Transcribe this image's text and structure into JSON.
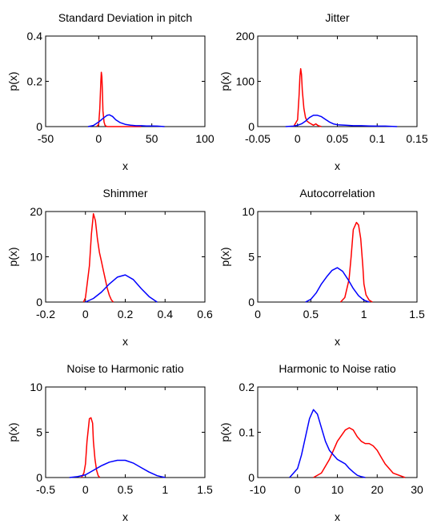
{
  "chart_data": [
    {
      "type": "line",
      "title": "Standard Deviation in pitch",
      "xlabel": "x",
      "ylabel": "p(x)",
      "xlim": [
        -50,
        100
      ],
      "ylim": [
        0,
        0.4
      ],
      "xticks": [
        -50,
        0,
        50,
        100
      ],
      "yticks": [
        0,
        0.2,
        0.4
      ],
      "xtick_labels": [
        "-50",
        "0",
        "50",
        "100"
      ],
      "ytick_labels": [
        "0",
        "0.2",
        "0.4"
      ],
      "grid": false,
      "series": [
        {
          "color": "#ff0000",
          "x": [
            -2,
            0,
            1,
            2,
            2.5,
            3,
            3.5,
            4,
            5,
            6,
            8,
            12,
            20,
            30,
            40
          ],
          "y": [
            0,
            0.01,
            0.08,
            0.2,
            0.24,
            0.22,
            0.15,
            0.07,
            0.02,
            0.005,
            0,
            0,
            0,
            0,
            0
          ]
        },
        {
          "color": "#0000ff",
          "x": [
            -10,
            -5,
            0,
            5,
            8,
            10,
            13,
            16,
            20,
            25,
            30,
            35,
            40,
            45,
            50,
            55,
            62
          ],
          "y": [
            0,
            0.005,
            0.02,
            0.04,
            0.05,
            0.052,
            0.045,
            0.03,
            0.018,
            0.01,
            0.006,
            0.004,
            0.004,
            0.003,
            0.003,
            0.002,
            0
          ]
        }
      ]
    },
    {
      "type": "line",
      "title": "Jitter",
      "xlabel": "x",
      "ylabel": "p(x)",
      "xlim": [
        -0.05,
        0.15
      ],
      "ylim": [
        0,
        200
      ],
      "xticks": [
        -0.05,
        0,
        0.05,
        0.1,
        0.15
      ],
      "yticks": [
        0,
        100,
        200
      ],
      "xtick_labels": [
        "-0.05",
        "0",
        "0.05",
        "0.1",
        "0.15"
      ],
      "ytick_labels": [
        "0",
        "100",
        "200"
      ],
      "grid": false,
      "series": [
        {
          "color": "#ff0000",
          "x": [
            -0.005,
            0,
            0.002,
            0.003,
            0.004,
            0.005,
            0.006,
            0.008,
            0.01,
            0.012,
            0.015,
            0.02,
            0.023,
            0.026,
            0.03
          ],
          "y": [
            0,
            15,
            70,
            110,
            128,
            115,
            80,
            40,
            20,
            12,
            8,
            3,
            6,
            2,
            0
          ]
        },
        {
          "color": "#0000ff",
          "x": [
            -0.015,
            -0.005,
            0,
            0.005,
            0.01,
            0.015,
            0.02,
            0.025,
            0.03,
            0.035,
            0.04,
            0.045,
            0.05,
            0.06,
            0.07,
            0.08,
            0.09,
            0.1,
            0.11,
            0.125
          ],
          "y": [
            0,
            1,
            3,
            6,
            12,
            20,
            25,
            25,
            22,
            16,
            10,
            6,
            4,
            3,
            2,
            2,
            1.5,
            1,
            1,
            0
          ]
        }
      ]
    },
    {
      "type": "line",
      "title": "Shimmer",
      "xlabel": "x",
      "ylabel": "p(x)",
      "xlim": [
        -0.2,
        0.6
      ],
      "ylim": [
        0,
        20
      ],
      "xticks": [
        -0.2,
        0,
        0.2,
        0.4,
        0.6
      ],
      "yticks": [
        0,
        10,
        20
      ],
      "xtick_labels": [
        "-0.2",
        "0",
        "0.2",
        "0.4",
        "0.6"
      ],
      "ytick_labels": [
        "0",
        "10",
        "20"
      ],
      "grid": false,
      "series": [
        {
          "color": "#ff0000",
          "x": [
            -0.01,
            0,
            0.02,
            0.03,
            0.04,
            0.05,
            0.06,
            0.07,
            0.08,
            0.09,
            0.1,
            0.11,
            0.12,
            0.13,
            0.14
          ],
          "y": [
            0,
            1,
            8,
            15,
            19.5,
            18,
            14,
            11,
            9,
            7,
            5,
            3,
            1.5,
            0.5,
            0
          ]
        },
        {
          "color": "#0000ff",
          "x": [
            0,
            0.04,
            0.08,
            0.12,
            0.16,
            0.2,
            0.24,
            0.28,
            0.32,
            0.36
          ],
          "y": [
            0,
            0.8,
            2.2,
            4,
            5.5,
            6,
            5,
            3,
            1.2,
            0
          ]
        }
      ]
    },
    {
      "type": "line",
      "title": "Autocorrelation",
      "xlabel": "x",
      "ylabel": "p(x)",
      "xlim": [
        0,
        1.5
      ],
      "ylim": [
        0,
        10
      ],
      "xticks": [
        0,
        0.5,
        1,
        1.5
      ],
      "yticks": [
        0,
        5,
        10
      ],
      "xtick_labels": [
        "0",
        "0.5",
        "1",
        "1.5"
      ],
      "ytick_labels": [
        "0",
        "5",
        "10"
      ],
      "grid": false,
      "series": [
        {
          "color": "#ff0000",
          "x": [
            0.78,
            0.82,
            0.86,
            0.88,
            0.9,
            0.93,
            0.95,
            0.97,
            0.99,
            1.0,
            1.02,
            1.05,
            1.08
          ],
          "y": [
            0,
            0.5,
            2.5,
            5,
            8,
            8.8,
            8.5,
            7,
            4,
            2,
            0.8,
            0.2,
            0
          ]
        },
        {
          "color": "#0000ff",
          "x": [
            0.45,
            0.5,
            0.55,
            0.6,
            0.65,
            0.7,
            0.75,
            0.8,
            0.85,
            0.9,
            0.95,
            1.0,
            1.05
          ],
          "y": [
            0,
            0.3,
            1,
            2,
            2.8,
            3.5,
            3.8,
            3.4,
            2.5,
            1.5,
            0.7,
            0.2,
            0
          ]
        }
      ]
    },
    {
      "type": "line",
      "title": "Noise to Harmonic ratio",
      "xlabel": "x",
      "ylabel": "p(x)",
      "xlim": [
        -0.5,
        1.5
      ],
      "ylim": [
        0,
        10
      ],
      "xticks": [
        -0.5,
        0,
        0.5,
        1,
        1.5
      ],
      "yticks": [
        0,
        5,
        10
      ],
      "xtick_labels": [
        "-0.5",
        "0",
        "0.5",
        "1",
        "1.5"
      ],
      "ytick_labels": [
        "0",
        "5",
        "10"
      ],
      "grid": false,
      "series": [
        {
          "color": "#ff0000",
          "x": [
            -0.05,
            -0.02,
            0,
            0.02,
            0.05,
            0.07,
            0.09,
            0.1,
            0.12,
            0.14,
            0.16,
            0.18
          ],
          "y": [
            0,
            0.5,
            1.5,
            4,
            6.5,
            6.6,
            6,
            4,
            2,
            0.8,
            0.2,
            0
          ]
        },
        {
          "color": "#0000ff",
          "x": [
            -0.2,
            -0.1,
            0,
            0.1,
            0.2,
            0.3,
            0.4,
            0.5,
            0.6,
            0.7,
            0.8,
            0.9,
            1.0
          ],
          "y": [
            0,
            0.1,
            0.3,
            0.8,
            1.3,
            1.7,
            1.9,
            1.9,
            1.6,
            1.1,
            0.6,
            0.2,
            0
          ]
        }
      ]
    },
    {
      "type": "line",
      "title": "Harmonic to Noise ratio",
      "xlabel": "x",
      "ylabel": "p(x)",
      "xlim": [
        -10,
        30
      ],
      "ylim": [
        0,
        0.2
      ],
      "xticks": [
        -10,
        0,
        10,
        20,
        30
      ],
      "yticks": [
        0,
        0.1,
        0.2
      ],
      "xtick_labels": [
        "-10",
        "0",
        "10",
        "20",
        "30"
      ],
      "ytick_labels": [
        "0",
        "0.1",
        "0.2"
      ],
      "grid": false,
      "series": [
        {
          "color": "#ff0000",
          "x": [
            4,
            6,
            8,
            10,
            12,
            13,
            14,
            15,
            16,
            17,
            18,
            19,
            20,
            21,
            22,
            24,
            27
          ],
          "y": [
            0,
            0.01,
            0.04,
            0.08,
            0.105,
            0.11,
            0.105,
            0.09,
            0.08,
            0.075,
            0.075,
            0.07,
            0.06,
            0.045,
            0.03,
            0.01,
            0
          ]
        },
        {
          "color": "#0000ff",
          "x": [
            -2,
            0,
            1,
            2,
            3,
            4,
            5,
            6,
            7,
            8,
            9,
            10,
            11,
            12,
            13,
            14,
            15,
            16,
            17
          ],
          "y": [
            0,
            0.02,
            0.05,
            0.09,
            0.13,
            0.15,
            0.14,
            0.11,
            0.08,
            0.06,
            0.05,
            0.04,
            0.035,
            0.03,
            0.02,
            0.012,
            0.005,
            0.002,
            0
          ]
        }
      ]
    }
  ]
}
